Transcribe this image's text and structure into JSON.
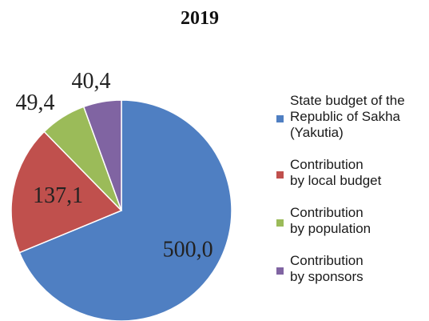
{
  "chart_data": {
    "type": "pie",
    "title": "2019",
    "categories": [
      "State budget of the Republic of Sakha (Yakutia)",
      "Contribution by local budget",
      "Contribution by population",
      "Contribution by sponsors"
    ],
    "values": [
      500.0,
      137.1,
      49.4,
      40.4
    ],
    "value_labels": [
      "500,0",
      "137,1",
      "49,4",
      "40,4"
    ],
    "colors": [
      "#4f7fc2",
      "#c0504d",
      "#9bbb59",
      "#8064a2"
    ],
    "legend_position": "right",
    "legend_lines": [
      [
        "State budget of the",
        "Republic of Sakha",
        "(Yakutia)"
      ],
      [
        "Contribution",
        "by local budget"
      ],
      [
        "Contribution",
        "by population"
      ],
      [
        "Contribution",
        "by sponsors"
      ]
    ]
  }
}
